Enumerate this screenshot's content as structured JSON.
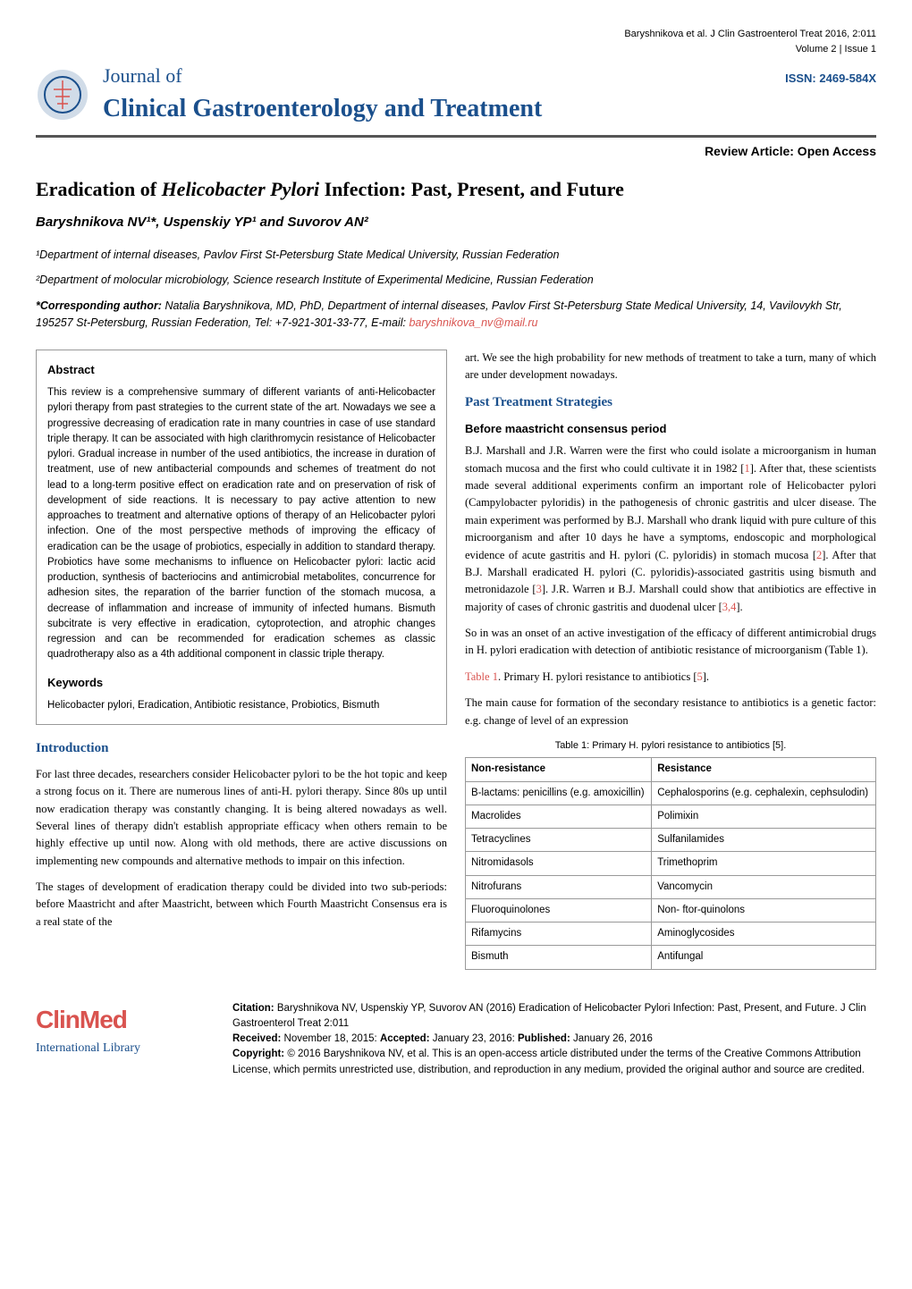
{
  "header": {
    "citation_line": "Baryshnikova et al. J Clin Gastroenterol Treat 2016, 2:011",
    "volume_issue": "Volume 2 | Issue 1",
    "issn": "ISSN: 2469-584X",
    "journal_of": "Journal of",
    "journal_name": "Clinical Gastroenterology and Treatment",
    "review_type": "Review Article: Open Access"
  },
  "article": {
    "title_pre": "Eradication of ",
    "title_italic": "Helicobacter Pylori",
    "title_post": " Infection: Past, Present, and Future",
    "authors": "Baryshnikova NV¹*, Uspenskiy YP¹ and Suvorov AN²",
    "affiliation1": "¹Department of internal diseases, Pavlov First St-Petersburg State Medical University, Russian Federation",
    "affiliation2": "²Department of molocular microbiology, Science research Institute of Experimental Medicine, Russian Federation",
    "corresponding_label": "*Corresponding author:",
    "corresponding_text": " Natalia Baryshnikova, MD, PhD, Department of internal diseases, Pavlov First St-Petersburg State Medical University, 14, Vavilovykh Str, 195257 St-Petersburg, Russian Federation, Tel: +7-921-301-33-77, E-mail: ",
    "corresponding_email": "baryshnikova_nv@mail.ru"
  },
  "abstract": {
    "heading": "Abstract",
    "text": "This review is a comprehensive summary of different variants of anti-Helicobacter pylori therapy from past strategies to the current state of the art. Nowadays we see a progressive decreasing of eradication rate in many countries in case of use standard triple therapy. It can be associated with high clarithromycin resistance of Helicobacter pylori. Gradual increase in number of the used antibiotics, the increase in duration of treatment, use of new antibacterial compounds and schemes of treatment do not lead to a long-term positive effect on eradication rate and on preservation of risk of development of side reactions. It is necessary to pay active attention to new approaches to treatment and alternative options of therapy of an Helicobacter pylori infection. One of the most perspective methods of improving the efficacy of eradication can be the usage of probiotics, especially in addition to standard therapy. Probiotics have some mechanisms to influence on Helicobacter pylori: lactic acid production, synthesis of bacteriocins and antimicrobial metabolites, concurrence for adhesion sites, the reparation of the barrier function of the stomach mucosa, a decrease of inflammation and increase of immunity of infected humans. Bismuth subcitrate is very effective in eradication, cytoprotection, and atrophic changes regression and can be recommended for eradication schemes as classic quadrotherapy also as a 4th additional component in classic triple therapy.",
    "keywords_heading": "Keywords",
    "keywords_text": "Helicobacter pylori, Eradication, Antibiotic resistance, Probiotics, Bismuth"
  },
  "sections": {
    "intro_title": "Introduction",
    "intro_p1": "For last three decades, researchers consider Helicobacter pylori to be the hot topic and keep a strong focus on it. There are numerous lines of anti-H. pylori therapy. Since 80s up until now eradication therapy was constantly changing. It is being altered nowadays as well. Several lines of therapy didn't establish appropriate efficacy when others remain to be highly effective up until now. Along with old methods, there are active discussions on implementing new compounds and alternative methods to impair on this infection.",
    "intro_p2": "The stages of development of eradication therapy could be divided into two sub-periods: before Maastricht and after Maastricht, between which Fourth Maastricht Consensus era is a real state of the",
    "right_p0": "art. We see the high probability for new methods of treatment to take a turn, many of which are under development nowadays.",
    "past_title": "Past Treatment Strategies",
    "before_title": "Before maastricht consensus period",
    "past_p1a": "B.J. Marshall and J.R. Warren were the first who could isolate a microorganism in human stomach mucosa and the first who could cultivate it in 1982 [",
    "past_p1b": "]. After that, these scientists made several additional experiments confirm an important role of Helicobacter pylori (Campylobacter pyloridis) in the pathogenesis of chronic gastritis and ulcer disease. The main experiment was performed by B.J. Marshall who drank liquid with pure culture of this microorganism and after 10 days he have a symptoms, endoscopic and morphological evidence of acute gastritis and H. pylori (C. pyloridis) in stomach mucosa [",
    "past_p1c": "]. After that B.J. Marshall eradicated H. pylori (C. pyloridis)-associated gastritis using bismuth and metronidazole [",
    "past_p1d": "]. J.R. Warren и B.J. Marshall could show that antibiotics are effective in majority of cases of chronic gastritis and duodenal ulcer [",
    "past_p1e": "].",
    "ref1": "1",
    "ref2": "2",
    "ref3": "3",
    "ref34": "3,4",
    "past_p2": "So in was an onset of an active investigation of the efficacy of different antimicrobial drugs in H. pylori eradication with detection of antibiotic resistance of microorganism (Table 1).",
    "table1_label_a": "Table 1",
    "table1_label_b": ". Primary H. pylori resistance to antibiotics [",
    "ref5": "5",
    "table1_label_c": "].",
    "past_p3": "The main cause for formation of the secondary resistance to antibiotics is a genetic factor: e.g. change of level of an expression"
  },
  "table1": {
    "caption": "Table 1: Primary H. pylori resistance to antibiotics [5].",
    "head_col1": "Non-resistance",
    "head_col2": "Resistance",
    "rows": [
      {
        "c1": "B-lactams: penicillins (e.g. amoxicillin)",
        "c2": "Cephalosporins (e.g. cephalexin, cephsulodin)"
      },
      {
        "c1": "Macrolides",
        "c2": "Polimixin"
      },
      {
        "c1": "Tetracyclines",
        "c2": "Sulfanilamides"
      },
      {
        "c1": "Nitromidasols",
        "c2": "Trimethoprim"
      },
      {
        "c1": "Nitrofurans",
        "c2": "Vancomycin"
      },
      {
        "c1": "Fluoroquinolones",
        "c2": "Non- ftor-quinolons"
      },
      {
        "c1": "Rifamycins",
        "c2": "Aminoglycosides"
      },
      {
        "c1": "Bismuth",
        "c2": "Antifungal"
      }
    ]
  },
  "footer": {
    "clinmed": "ClinMed",
    "intllib": "International Library",
    "citation_label": "Citation: ",
    "citation_text": "Baryshnikova NV, Uspenskiy YP, Suvorov AN (2016) Eradication of Helicobacter Pylori Infection: Past, Present, and Future. J Clin Gastroenterol Treat 2:011",
    "received_label": "Received: ",
    "received": "November 18, 2015: ",
    "accepted_label": "Accepted: ",
    "accepted": "January 23, 2016: ",
    "published_label": "Published: ",
    "published": "January 26, 2016",
    "copyright_label": "Copyright: ",
    "copyright_text": "© 2016 Baryshnikova NV, et al. This is an open-access article distributed under the terms of the Creative Commons Attribution License, which permits unrestricted use, distribution, and reproduction in any medium, provided the original author and source are credited."
  },
  "colors": {
    "blue": "#1a4f8c",
    "red": "#d9534f",
    "border": "#999999",
    "divider": "#555555"
  }
}
